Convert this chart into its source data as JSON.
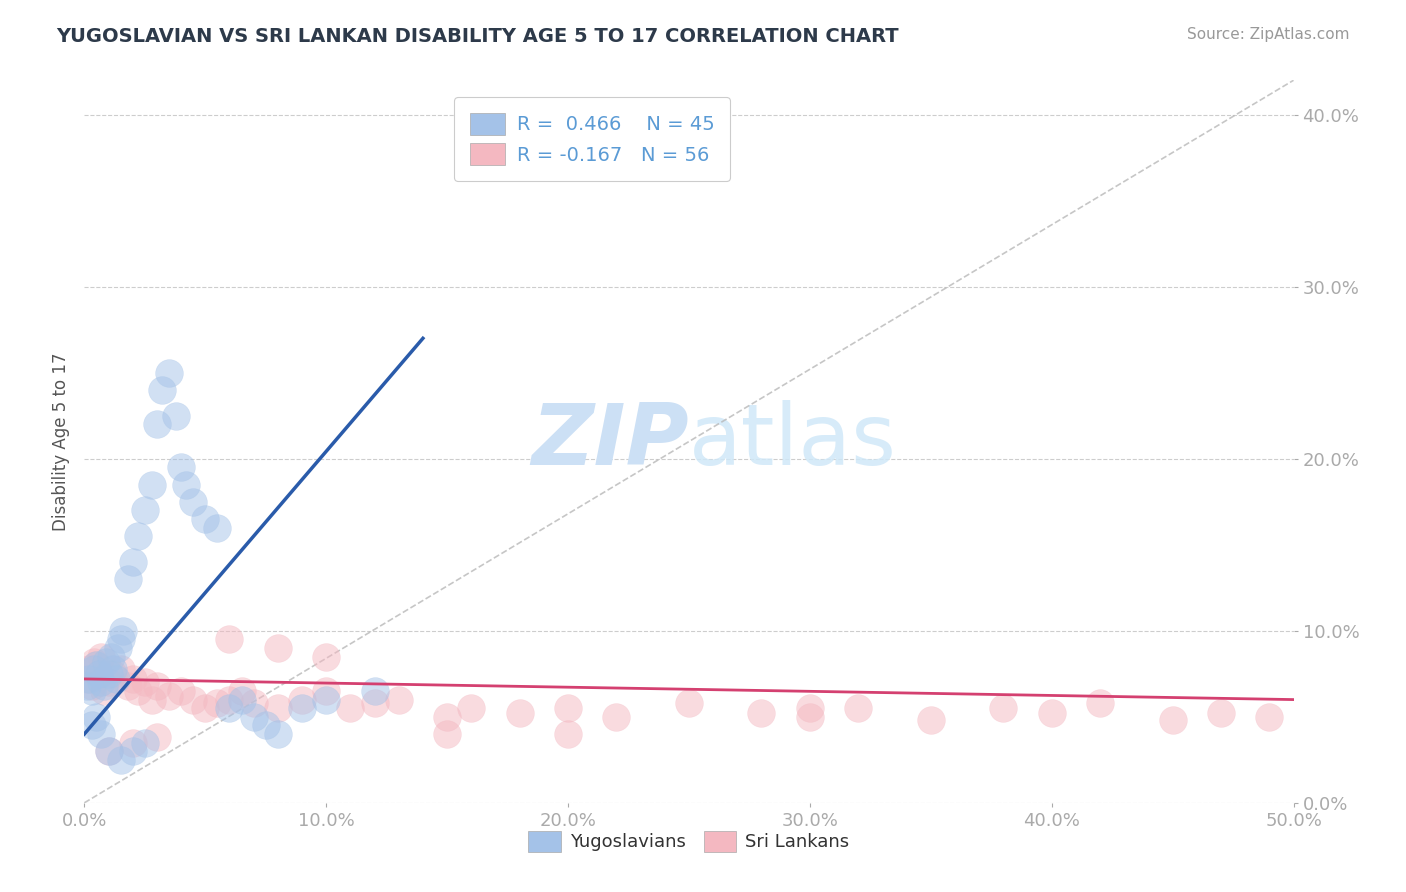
{
  "title": "YUGOSLAVIAN VS SRI LANKAN DISABILITY AGE 5 TO 17 CORRELATION CHART",
  "source": "Source: ZipAtlas.com",
  "ylabel": "Disability Age 5 to 17",
  "xlim": [
    0.0,
    0.5
  ],
  "ylim": [
    0.0,
    0.42
  ],
  "yugoslavian_R": 0.466,
  "yugoslavian_N": 45,
  "srilankan_R": -0.167,
  "srilankan_N": 56,
  "blue_scatter_color": "#a4c2e8",
  "pink_scatter_color": "#f4b8c1",
  "blue_line_color": "#2a5baa",
  "pink_line_color": "#d44070",
  "diag_color": "#b8b8b8",
  "watermark_color": "#cce0f5",
  "grid_color": "#c8c8c8",
  "background_color": "#ffffff",
  "title_color": "#2d3a4a",
  "tick_color": "#5b9bd5",
  "yugoslav_points_x": [
    0.001,
    0.002,
    0.003,
    0.004,
    0.005,
    0.006,
    0.007,
    0.008,
    0.009,
    0.01,
    0.011,
    0.012,
    0.013,
    0.014,
    0.015,
    0.016,
    0.018,
    0.02,
    0.022,
    0.025,
    0.028,
    0.03,
    0.032,
    0.035,
    0.038,
    0.04,
    0.042,
    0.045,
    0.05,
    0.055,
    0.06,
    0.065,
    0.07,
    0.075,
    0.08,
    0.09,
    0.1,
    0.12,
    0.003,
    0.005,
    0.007,
    0.01,
    0.015,
    0.02,
    0.025
  ],
  "yugoslav_points_y": [
    0.068,
    0.072,
    0.065,
    0.078,
    0.08,
    0.075,
    0.07,
    0.068,
    0.082,
    0.075,
    0.085,
    0.078,
    0.072,
    0.09,
    0.095,
    0.1,
    0.13,
    0.14,
    0.155,
    0.17,
    0.185,
    0.22,
    0.24,
    0.25,
    0.225,
    0.195,
    0.185,
    0.175,
    0.165,
    0.16,
    0.055,
    0.06,
    0.05,
    0.045,
    0.04,
    0.055,
    0.06,
    0.065,
    0.045,
    0.05,
    0.04,
    0.03,
    0.025,
    0.03,
    0.035
  ],
  "srilankan_points_x": [
    0.001,
    0.002,
    0.003,
    0.004,
    0.005,
    0.006,
    0.007,
    0.008,
    0.01,
    0.012,
    0.015,
    0.018,
    0.02,
    0.022,
    0.025,
    0.028,
    0.03,
    0.035,
    0.04,
    0.045,
    0.05,
    0.055,
    0.06,
    0.065,
    0.07,
    0.08,
    0.09,
    0.1,
    0.11,
    0.12,
    0.13,
    0.15,
    0.16,
    0.18,
    0.2,
    0.22,
    0.25,
    0.28,
    0.3,
    0.32,
    0.35,
    0.38,
    0.4,
    0.42,
    0.45,
    0.47,
    0.49,
    0.06,
    0.08,
    0.1,
    0.15,
    0.2,
    0.3,
    0.01,
    0.02,
    0.03
  ],
  "srilankan_points_y": [
    0.072,
    0.078,
    0.068,
    0.082,
    0.08,
    0.075,
    0.085,
    0.065,
    0.07,
    0.075,
    0.078,
    0.068,
    0.072,
    0.065,
    0.07,
    0.06,
    0.068,
    0.062,
    0.065,
    0.06,
    0.055,
    0.058,
    0.06,
    0.065,
    0.058,
    0.055,
    0.06,
    0.065,
    0.055,
    0.058,
    0.06,
    0.05,
    0.055,
    0.052,
    0.055,
    0.05,
    0.058,
    0.052,
    0.05,
    0.055,
    0.048,
    0.055,
    0.052,
    0.058,
    0.048,
    0.052,
    0.05,
    0.095,
    0.09,
    0.085,
    0.04,
    0.04,
    0.055,
    0.03,
    0.035,
    0.038
  ],
  "blue_trendline_x0": 0.0,
  "blue_trendline_y0": 0.04,
  "blue_trendline_x1": 0.14,
  "blue_trendline_y1": 0.27,
  "pink_trendline_x0": 0.0,
  "pink_trendline_y0": 0.072,
  "pink_trendline_x1": 0.5,
  "pink_trendline_y1": 0.06
}
